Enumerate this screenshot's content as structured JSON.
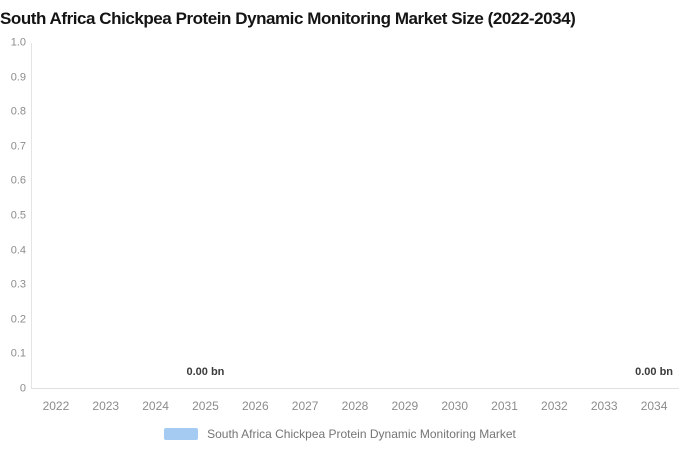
{
  "title": "South Africa Chickpea Protein Dynamic Monitoring Market Size (2022-2034)",
  "chart_data": {
    "type": "bar",
    "title": "South Africa Chickpea Protein Dynamic Monitoring Market Size (2022-2034)",
    "categories": [
      "2022",
      "2023",
      "2024",
      "2025",
      "2026",
      "2027",
      "2028",
      "2029",
      "2030",
      "2031",
      "2032",
      "2033",
      "2034"
    ],
    "series": [
      {
        "name": "South Africa Chickpea Protein Dynamic Monitoring Market",
        "values": [
          0,
          0,
          0,
          0,
          0,
          0,
          0,
          0,
          0,
          0,
          0,
          0,
          0
        ],
        "color": "#a6cbf3"
      }
    ],
    "xlabel": "",
    "ylabel": "",
    "ylim": [
      0,
      1.0
    ],
    "ytick_step": 0.1,
    "ytick_labels": [
      "0",
      "0.1",
      "0.2",
      "0.3",
      "0.4",
      "0.5",
      "0.6",
      "0.7",
      "0.8",
      "0.9",
      "1.0"
    ],
    "data_labels": [
      {
        "category": "2025",
        "text": "0.00 bn"
      },
      {
        "category": "2034",
        "text": "0.00 bn"
      }
    ],
    "grid": false,
    "legend": {
      "position": "bottom",
      "label": "South Africa Chickpea Protein Dynamic Monitoring Market",
      "swatch_color": "#a6cbf3"
    }
  }
}
